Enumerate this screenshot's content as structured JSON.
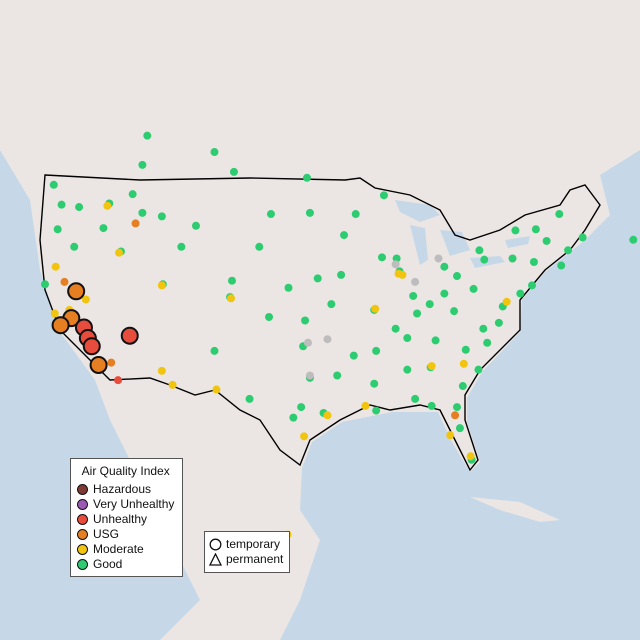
{
  "legend": {
    "title": "Air Quality Index",
    "categories": [
      {
        "label": "Hazardous",
        "color": "#7e3a34"
      },
      {
        "label": "Very Unhealthy",
        "color": "#9b59b6"
      },
      {
        "label": "Unhealthy",
        "color": "#e74c3c"
      },
      {
        "label": "USG",
        "color": "#e67e22"
      },
      {
        "label": "Moderate",
        "color": "#f1c40f"
      },
      {
        "label": "Good",
        "color": "#2ecc71"
      }
    ],
    "types": [
      {
        "label": "temporary",
        "shape": "circle"
      },
      {
        "label": "permanent",
        "shape": "triangle"
      }
    ]
  },
  "colors": {
    "ocean": "#c6d8e8",
    "land": "#ebe6e3",
    "no_data": "#bdbdbd",
    "border": "#000000"
  },
  "monitors": {
    "Good": [
      [
        -122.3,
        47.6
      ],
      [
        -122.7,
        45.5
      ],
      [
        -116.2,
        43.6
      ],
      [
        -117.4,
        47.7
      ],
      [
        -114,
        46.9
      ],
      [
        -112,
        46.6
      ],
      [
        -108.5,
        45.8
      ],
      [
        -100.8,
        46.8
      ],
      [
        -96.8,
        46.9
      ],
      [
        -93.3,
        45
      ],
      [
        -92.1,
        46.8
      ],
      [
        -93.6,
        41.6
      ],
      [
        -96,
        41.3
      ],
      [
        -105,
        39.7
      ],
      [
        -104.8,
        41.1
      ],
      [
        -111.9,
        40.8
      ],
      [
        -106.6,
        35.1
      ],
      [
        -97.5,
        35.5
      ],
      [
        -96.8,
        32.8
      ],
      [
        -95.4,
        29.8
      ],
      [
        -98.5,
        29.4
      ],
      [
        -97.7,
        30.3
      ],
      [
        -90,
        30
      ],
      [
        -90.2,
        32.3
      ],
      [
        -90,
        35.1
      ],
      [
        -86.8,
        36.2
      ],
      [
        -84.4,
        33.7
      ],
      [
        -86.8,
        33.5
      ],
      [
        -80.8,
        35.2
      ],
      [
        -78.6,
        35.8
      ],
      [
        -77.4,
        37.5
      ],
      [
        -77,
        38.9
      ],
      [
        -75.2,
        40
      ],
      [
        -74,
        40.7
      ],
      [
        -71,
        42.4
      ],
      [
        -70.3,
        43.7
      ],
      [
        -68.8,
        44.8
      ],
      [
        -73.8,
        42.7
      ],
      [
        -78.9,
        42.9
      ],
      [
        -80,
        40.4
      ],
      [
        -81.7,
        41.5
      ],
      [
        -83,
        40
      ],
      [
        -84.5,
        39.1
      ],
      [
        -86.2,
        39.8
      ],
      [
        -87.6,
        41.9
      ],
      [
        -83,
        42.3
      ],
      [
        -87.9,
        43
      ],
      [
        -89.4,
        43.1
      ],
      [
        -90.2,
        38.6
      ],
      [
        -94.6,
        39.1
      ],
      [
        -97.3,
        37.7
      ],
      [
        -92.3,
        34.7
      ],
      [
        -85.8,
        38.3
      ],
      [
        -83.9,
        36
      ],
      [
        -81.7,
        30.3
      ],
      [
        -81.4,
        28.5
      ],
      [
        -80.2,
        25.8
      ],
      [
        -81.1,
        32.1
      ],
      [
        -84.3,
        30.4
      ],
      [
        -114,
        51
      ],
      [
        -113.5,
        53.5
      ],
      [
        -104.6,
        50.4
      ],
      [
        -97.1,
        49.9
      ],
      [
        -79.4,
        43.7
      ],
      [
        -75.7,
        45.4
      ],
      [
        -73.6,
        45.5
      ],
      [
        -71.2,
        46.8
      ],
      [
        -63.6,
        44.6
      ],
      [
        -123.1,
        49.3
      ],
      [
        -106.6,
        52.1
      ],
      [
        -89.2,
        48.4
      ],
      [
        -120.5,
        47.4
      ],
      [
        -118,
        45.6
      ],
      [
        -110,
        44
      ],
      [
        -102,
        44
      ],
      [
        -99,
        40.5
      ],
      [
        -101,
        38
      ],
      [
        -88,
        37
      ],
      [
        -82,
        38.5
      ],
      [
        -79,
        37
      ],
      [
        -76,
        43
      ],
      [
        -72.5,
        44.5
      ],
      [
        -103,
        31
      ],
      [
        -94,
        33
      ],
      [
        -86,
        31
      ],
      [
        -79.5,
        33.5
      ],
      [
        -121,
        44
      ],
      [
        -115,
        48.5
      ],
      [
        -124,
        40.8
      ]
    ],
    "Moderate": [
      [
        -112,
        33.4
      ],
      [
        -110.9,
        32.2
      ],
      [
        -119.8,
        39.5
      ],
      [
        -121.5,
        38.6
      ],
      [
        -115.1,
        36.2
      ],
      [
        -106.4,
        31.8
      ],
      [
        -87.7,
        41.7
      ],
      [
        -87.3,
        41.6
      ],
      [
        -97.4,
        27.8
      ],
      [
        -99.1,
        19.4
      ],
      [
        -91.1,
        30.4
      ],
      [
        -82.4,
        27.9
      ],
      [
        -104.9,
        39.6
      ],
      [
        -112,
        40.7
      ],
      [
        -116.4,
        43.5
      ],
      [
        -122.9,
        42.3
      ],
      [
        -90.1,
        38.7
      ],
      [
        -84.3,
        33.8
      ],
      [
        -81,
        34
      ],
      [
        -80.3,
        26.1
      ],
      [
        -76.6,
        39.3
      ],
      [
        -123,
        38.3
      ],
      [
        -119,
        35.3
      ],
      [
        -117.6,
        47.5
      ],
      [
        -95,
        29.6
      ]
    ],
    "USG": [
      [
        -117.2,
        34.1
      ],
      [
        -118,
        34
      ],
      [
        -81.9,
        29.6
      ],
      [
        -122,
        41
      ],
      [
        -114.7,
        46
      ]
    ],
    "Unhealthy": [
      [
        -116.5,
        32.6
      ]
    ],
    "No data": [
      [
        -97,
        35.8
      ],
      [
        -95,
        36.1
      ],
      [
        -88,
        42.5
      ],
      [
        -86,
        41
      ],
      [
        -83.6,
        43
      ],
      [
        -96.8,
        33
      ]
    ]
  },
  "temporary_large": [
    {
      "lonlat": [
        -120.8,
        40.2
      ],
      "category": "USG"
    },
    {
      "lonlat": [
        -121.3,
        37.9
      ],
      "category": "USG"
    },
    {
      "lonlat": [
        -122.4,
        37.3
      ],
      "category": "USG"
    },
    {
      "lonlat": [
        -120.0,
        37.1
      ],
      "category": "Unhealthy"
    },
    {
      "lonlat": [
        -119.6,
        36.2
      ],
      "category": "Unhealthy"
    },
    {
      "lonlat": [
        -119.2,
        35.5
      ],
      "category": "Unhealthy"
    },
    {
      "lonlat": [
        -118.5,
        33.9
      ],
      "category": "USG"
    },
    {
      "lonlat": [
        -115.3,
        36.4
      ],
      "category": "Unhealthy"
    }
  ]
}
